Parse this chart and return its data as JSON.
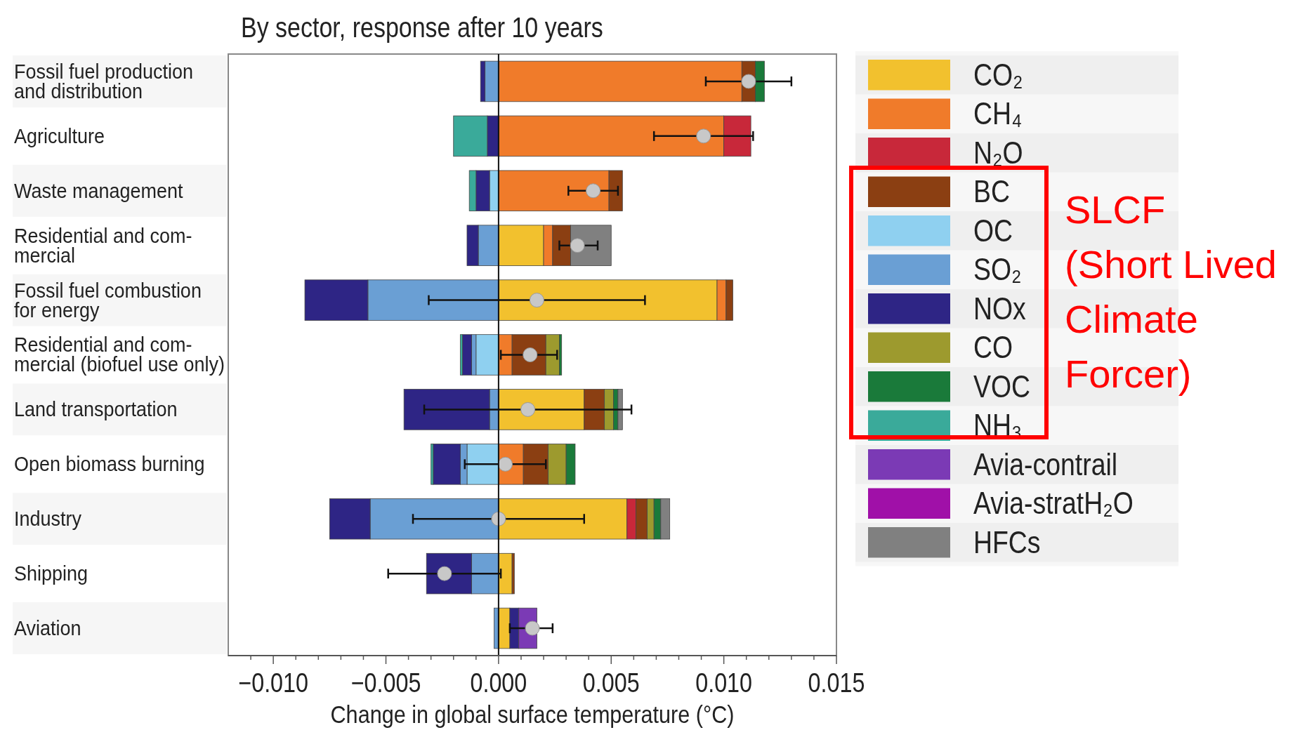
{
  "chart_data": {
    "type": "bar",
    "orientation": "horizontal",
    "stacked": true,
    "title": "By sector, response after 10 years",
    "xlabel": "Change in global surface temperature (°C)",
    "categories": [
      "Fossil fuel production\nand distribution",
      "Agriculture",
      "Waste management",
      "Residential and com-\nmercial",
      "Fossil fuel combustion\nfor energy",
      "Residential and com-\nmercial (biofuel use only)",
      "Land transportation",
      "Open biomass burning",
      "Industry",
      "Shipping",
      "Aviation"
    ],
    "series": [
      {
        "name": "CO₂",
        "color": "#f2c12e",
        "values": [
          null,
          null,
          null,
          0.002,
          0.0097,
          null,
          0.0038,
          null,
          0.0057,
          0.0006,
          0.0005
        ]
      },
      {
        "name": "CH₄",
        "color": "#f07b2a",
        "values": [
          0.0108,
          0.01,
          0.0049,
          0.0004,
          0.0004,
          0.0006,
          null,
          0.0011,
          null,
          null,
          null
        ]
      },
      {
        "name": "N₂O",
        "color": "#c8283a",
        "values": [
          null,
          0.0012,
          null,
          null,
          null,
          null,
          null,
          null,
          0.0004,
          null,
          null
        ]
      },
      {
        "name": "BC",
        "color": "#8b3f12",
        "values": [
          0.0006,
          null,
          0.0006,
          0.0008,
          0.0003,
          0.0015,
          0.0009,
          0.0011,
          0.0005,
          0.0001,
          null
        ]
      },
      {
        "name": "OC",
        "color": "#8fd0f0",
        "values": [
          null,
          null,
          -0.0004,
          null,
          null,
          -0.001,
          null,
          -0.0014,
          null,
          null,
          null
        ]
      },
      {
        "name": "SO₂",
        "color": "#6a9fd4",
        "values": [
          -0.0006,
          null,
          null,
          -0.0009,
          -0.0058,
          -0.0002,
          -0.0004,
          -0.0003,
          -0.0057,
          -0.0012,
          -0.0002
        ]
      },
      {
        "name": "NOx",
        "color": "#2e2585",
        "values": [
          -0.0002,
          -0.0005,
          -0.0006,
          -0.0005,
          -0.0028,
          -0.0004,
          -0.0038,
          -0.0012,
          -0.0018,
          -0.002,
          0.0004
        ]
      },
      {
        "name": "CO",
        "color": "#9d9a2e",
        "values": [
          null,
          null,
          null,
          null,
          null,
          0.0006,
          0.0004,
          0.0008,
          0.0003,
          null,
          null
        ]
      },
      {
        "name": "VOC",
        "color": "#1a7a3a",
        "values": [
          0.0004,
          null,
          null,
          null,
          null,
          0.0001,
          0.0002,
          0.0004,
          0.0003,
          null,
          null
        ]
      },
      {
        "name": "NH₃",
        "color": "#3aaa9a",
        "values": [
          null,
          -0.0015,
          -0.0003,
          null,
          null,
          -0.0001,
          null,
          -0.0001,
          null,
          null,
          null
        ]
      },
      {
        "name": "Avia-contrail",
        "color": "#7b3ab5",
        "values": [
          null,
          null,
          null,
          null,
          null,
          null,
          null,
          null,
          null,
          null,
          0.0008
        ]
      },
      {
        "name": "Avia-stratH₂O",
        "color": "#a010a8",
        "values": [
          null,
          null,
          null,
          null,
          null,
          null,
          null,
          null,
          null,
          null,
          null
        ]
      },
      {
        "name": "HFCs",
        "color": "#808080",
        "values": [
          null,
          null,
          null,
          0.0018,
          null,
          null,
          0.0002,
          null,
          0.0004,
          null,
          null
        ]
      },
      {
        "type": "scatter",
        "color": "#c8c8c8",
        "marker": "circle",
        "x": [
          "Fossil fuel production\nand distribution",
          "Agriculture",
          "Waste management",
          "Residential and com-\nmercial",
          "Fossil fuel combustion\nfor energy",
          "Residential and com-\nmercial (biofuel use only)",
          "Land transportation",
          "Open biomass burning",
          "Industry",
          "Shipping",
          "Aviation"
        ],
        "values": [
          0.0111,
          0.0091,
          0.0042,
          0.0035,
          0.0017,
          0.0014,
          0.0013,
          0.0003,
          0.0,
          -0.0024,
          0.0015
        ],
        "errors": [
          [
            0.0092,
            0.013
          ],
          [
            0.0069,
            0.0113
          ],
          [
            0.0031,
            0.0053
          ],
          [
            0.0027,
            0.0044
          ],
          [
            -0.0031,
            0.0065
          ],
          [
            0.0001,
            0.0026
          ],
          [
            -0.0033,
            0.0059
          ],
          [
            -0.0015,
            0.0021
          ],
          [
            -0.0038,
            0.0038
          ],
          [
            -0.0049,
            0.0001
          ],
          [
            0.0005,
            0.0024
          ]
        ]
      }
    ],
    "xlim": [
      -0.012,
      0.015
    ],
    "xticks": [
      {
        "value": -0.011,
        "label": null
      },
      {
        "value": -0.01,
        "label": "−0.010"
      },
      {
        "value": -0.009,
        "label": null
      },
      {
        "value": -0.008,
        "label": null
      },
      {
        "value": -0.007,
        "label": null
      },
      {
        "value": -0.006,
        "label": null
      },
      {
        "value": -0.005,
        "label": "−0.005"
      },
      {
        "value": -0.004,
        "label": null
      },
      {
        "value": -0.003,
        "label": null
      },
      {
        "value": -0.002,
        "label": null
      },
      {
        "value": -0.001,
        "label": null
      },
      {
        "value": 0,
        "label": "0.000"
      },
      {
        "value": 0.001,
        "label": null
      },
      {
        "value": 0.002,
        "label": null
      },
      {
        "value": 0.003,
        "label": null
      },
      {
        "value": 0.004,
        "label": null
      },
      {
        "value": 0.005,
        "label": "0.005"
      },
      {
        "value": 0.006,
        "label": null
      },
      {
        "value": 0.007,
        "label": null
      },
      {
        "value": 0.008,
        "label": null
      },
      {
        "value": 0.009,
        "label": null
      },
      {
        "value": 0.01,
        "label": "0.010"
      },
      {
        "value": 0.011,
        "label": null
      },
      {
        "value": 0.012,
        "label": null
      },
      {
        "value": 0.013,
        "label": null
      },
      {
        "value": 0.014,
        "label": null
      },
      {
        "value": 0.015,
        "label": "0.015"
      }
    ],
    "grid": false,
    "legend": "right",
    "ref_lines": [
      {
        "axis": "x",
        "value": 0,
        "color": "#111111",
        "line_style": "solid"
      }
    ],
    "annotations": [
      "SLCF\n(Short Lived\nClimate\nForcer)"
    ]
  }
}
